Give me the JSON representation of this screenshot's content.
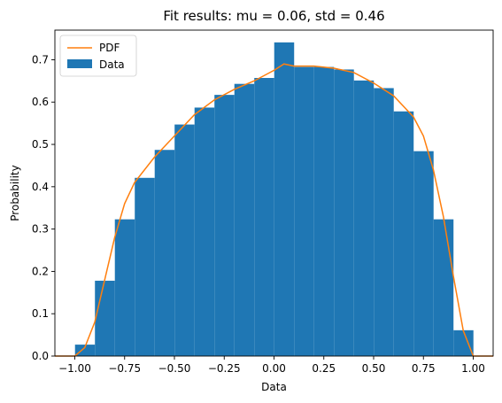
{
  "chart_data": {
    "type": "bar",
    "title": "Fit results: mu = 0.06,  std = 0.46",
    "xlabel": "Data",
    "ylabel": "Probability",
    "xlim": [
      -1.1,
      1.1
    ],
    "ylim": [
      0,
      0.77
    ],
    "xticks": [
      -1.0,
      -0.75,
      -0.5,
      -0.25,
      0.0,
      0.25,
      0.5,
      0.75,
      1.0
    ],
    "xtick_labels": [
      "−1.00",
      "−0.75",
      "−0.50",
      "−0.25",
      "0.00",
      "0.25",
      "0.50",
      "0.75",
      "1.00"
    ],
    "yticks": [
      0.0,
      0.1,
      0.2,
      0.3,
      0.4,
      0.5,
      0.6,
      0.7
    ],
    "ytick_labels": [
      "0.0",
      "0.1",
      "0.2",
      "0.3",
      "0.4",
      "0.5",
      "0.6",
      "0.7"
    ],
    "grid": false,
    "legend": {
      "placement": "top-left",
      "entries": [
        "PDF",
        "Data"
      ]
    },
    "histogram": {
      "name": "Data",
      "color": "#1f77b4",
      "bin_edges": [
        -0.999,
        -0.899,
        -0.799,
        -0.699,
        -0.599,
        -0.499,
        -0.399,
        -0.299,
        -0.199,
        -0.099,
        0.001,
        0.101,
        0.201,
        0.301,
        0.401,
        0.501,
        0.601,
        0.701,
        0.801,
        0.901,
        1.001
      ],
      "values": [
        0.027,
        0.178,
        0.323,
        0.421,
        0.487,
        0.547,
        0.587,
        0.617,
        0.643,
        0.657,
        0.741,
        0.683,
        0.683,
        0.677,
        0.651,
        0.633,
        0.578,
        0.484,
        0.323,
        0.061
      ]
    },
    "line": {
      "name": "PDF",
      "color": "#ff7f0e",
      "x": [
        -1.1,
        -1.0,
        -0.95,
        -0.9,
        -0.85,
        -0.8,
        -0.75,
        -0.7,
        -0.6,
        -0.5,
        -0.4,
        -0.3,
        -0.2,
        -0.1,
        0.0,
        0.05,
        0.1,
        0.2,
        0.3,
        0.4,
        0.5,
        0.6,
        0.7,
        0.75,
        0.8,
        0.85,
        0.9,
        0.95,
        1.0,
        1.1
      ],
      "y": [
        0.0,
        0.0,
        0.02,
        0.08,
        0.18,
        0.28,
        0.36,
        0.41,
        0.47,
        0.52,
        0.57,
        0.605,
        0.63,
        0.65,
        0.675,
        0.69,
        0.685,
        0.685,
        0.68,
        0.67,
        0.645,
        0.615,
        0.565,
        0.52,
        0.44,
        0.33,
        0.19,
        0.06,
        0.0,
        0.0
      ]
    }
  }
}
